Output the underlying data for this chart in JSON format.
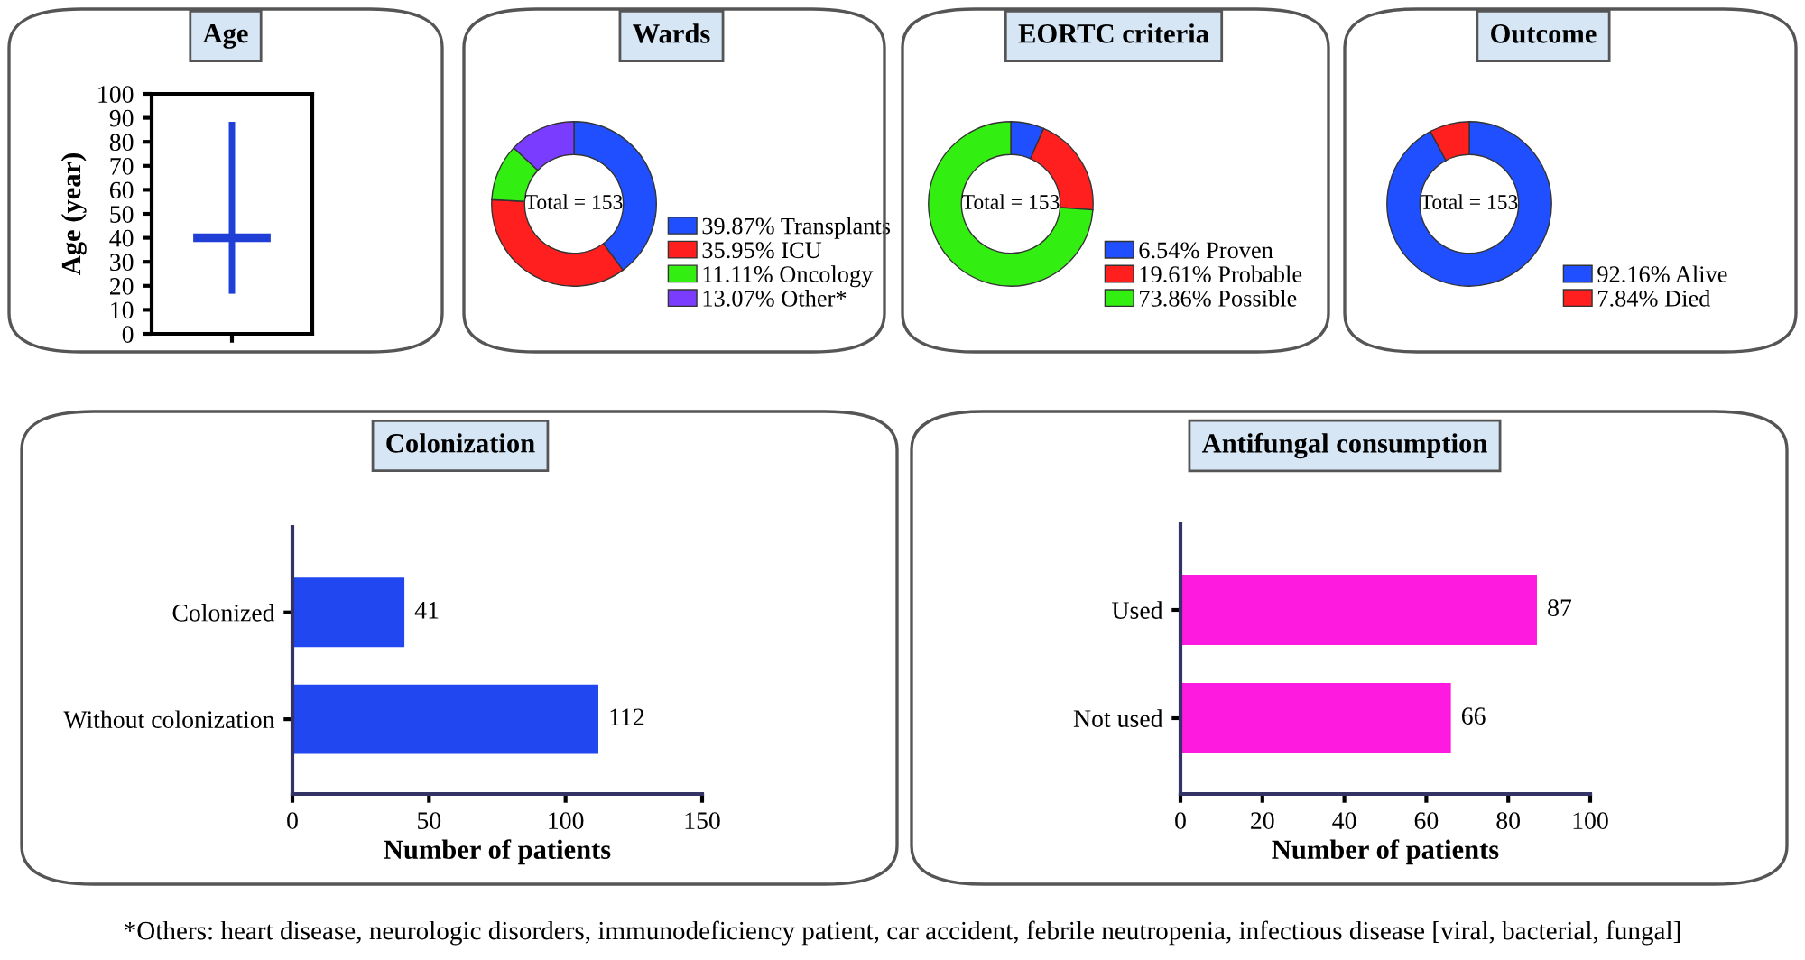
{
  "chart_data": [
    {
      "type": "box",
      "title": "Age",
      "ylabel": "Age (year)",
      "categories": [
        null
      ],
      "color": "#1f3fd6",
      "boxes": [
        {
          "low": 18,
          "q1": 39,
          "median": 40,
          "q3": 41,
          "high": 87
        }
      ],
      "ylim": [
        0,
        100
      ],
      "yticks": [
        0,
        10,
        20,
        30,
        40,
        50,
        60,
        70,
        80,
        90,
        100
      ],
      "grid": false
    },
    {
      "type": "donut",
      "title": "Wards",
      "categories": [
        "39.87% Transplants",
        "35.95% ICU",
        "11.11% Oncology",
        "13.07% Other*"
      ],
      "values": [
        39.87,
        35.95,
        11.11,
        13.07
      ],
      "colors": [
        "#1f4fff",
        "#ff1f1f",
        "#33ee11",
        "#7a3cff"
      ],
      "annotations": [
        "Total = 153"
      ],
      "legend": "bottom right"
    },
    {
      "type": "donut",
      "title": "EORTC criteria",
      "categories": [
        "6.54% Proven",
        "19.61% Probable",
        "73.86% Possible"
      ],
      "values": [
        6.54,
        19.61,
        73.86
      ],
      "colors": [
        "#1f4fff",
        "#ff1f1f",
        "#33ee11"
      ],
      "annotations": [
        "Total = 153"
      ],
      "legend": "bottom right"
    },
    {
      "type": "donut",
      "title": "Outcome",
      "categories": [
        "92.16% Alive",
        "7.84% Died"
      ],
      "values": [
        92.16,
        7.84
      ],
      "colors": [
        "#1f4fff",
        "#ff1f1f"
      ],
      "annotations": [
        "Total = 153"
      ],
      "legend": "bottom right"
    },
    {
      "type": "bar",
      "orientation": "horizontal",
      "title": "Colonization",
      "xlabel": "Number of patients",
      "categories": [
        "Colonized",
        "Without colonization"
      ],
      "values": [
        41,
        112
      ],
      "color": "#2147f0",
      "xlim": [
        0,
        150
      ],
      "xticks": [
        0,
        50,
        100,
        150
      ],
      "data_labels": true,
      "grid": false
    },
    {
      "type": "bar",
      "orientation": "horizontal",
      "title": "Antifungal consumption",
      "xlabel": "Number of patients",
      "categories": [
        "Used",
        "Not used"
      ],
      "values": [
        87,
        66
      ],
      "color": "#ff1ae0",
      "xlim": [
        0,
        100
      ],
      "xticks": [
        0,
        20,
        40,
        60,
        80,
        100
      ],
      "data_labels": true,
      "grid": false,
      "annotations": [
        "*Others: heart disease, neurologic disorders, immunodeficiency patient, car accident, febrile neutropenia, infectious disease [viral, bacterial, fungal]"
      ]
    }
  ]
}
